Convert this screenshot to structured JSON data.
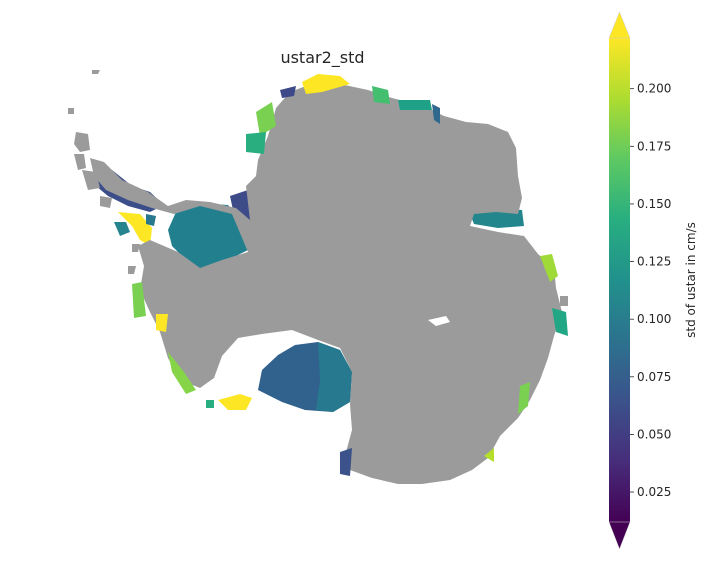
{
  "title": "ustar2_std",
  "colorbar": {
    "label": "std of ustar in cm/s",
    "ticks": [
      "0.025",
      "0.050",
      "0.075",
      "0.100",
      "0.125",
      "0.150",
      "0.175",
      "0.200"
    ],
    "tick_values": [
      0.025,
      0.05,
      0.075,
      0.1,
      0.125,
      0.15,
      0.175,
      0.2
    ],
    "vmin": 0.012,
    "vmax": 0.222,
    "extend": "both",
    "colormap": "viridis"
  },
  "colors": {
    "land": "#9b9b9b",
    "background": "#ffffff"
  }
}
